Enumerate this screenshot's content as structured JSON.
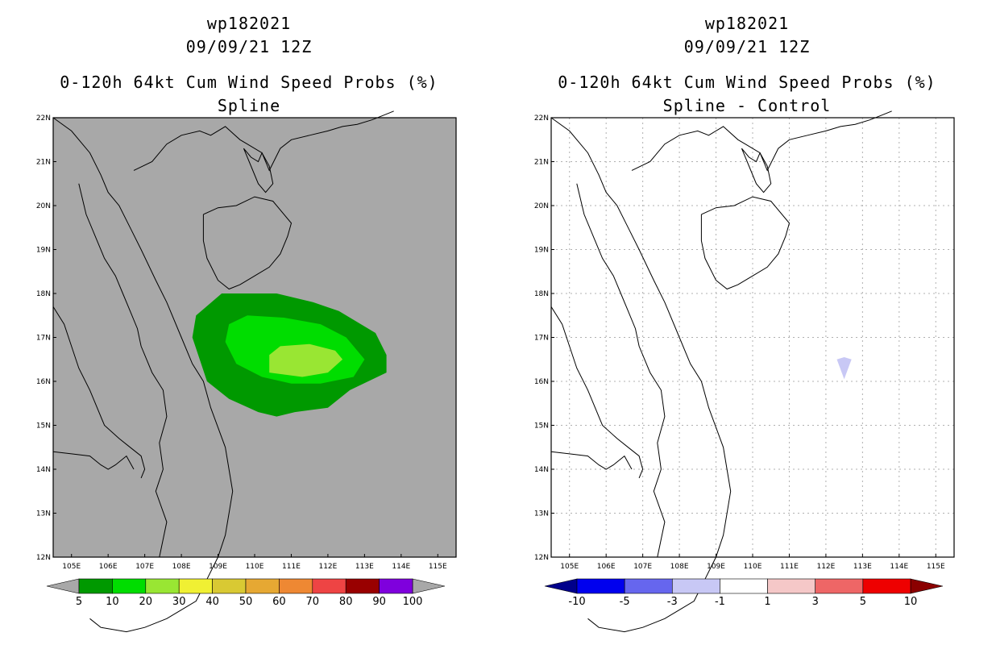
{
  "panels": [
    {
      "id": "left",
      "title": {
        "line1": "wp182021",
        "line2": "09/09/21 12Z",
        "line3": "0-120h 64kt Cum Wind Speed Probs (%)",
        "line4": "Spline"
      },
      "background": "#a8a8a8",
      "colorbar": {
        "colors": [
          "#009900",
          "#00dd00",
          "#99e633",
          "#f0f033",
          "#d9c933",
          "#e6a833",
          "#ee8833",
          "#ee4444",
          "#990000",
          "#7f00dd"
        ],
        "end_colors": [
          "#a8a8a8",
          "#a8a8a8"
        ],
        "labels": [
          "5",
          "10",
          "20",
          "30",
          "40",
          "50",
          "60",
          "70",
          "80",
          "90",
          "100"
        ]
      }
    },
    {
      "id": "right",
      "title": {
        "line1": "wp182021",
        "line2": "09/09/21 12Z",
        "line3": "0-120h 64kt Cum Wind Speed Probs (%)",
        "line4": "Spline - Control"
      },
      "background": "#ffffff",
      "colorbar": {
        "colors": [
          "#0000ee",
          "#6666ee",
          "#c8c8f5",
          "#ffffff",
          "#f5c8c8",
          "#ee6666",
          "#ee0000"
        ],
        "end_colors": [
          "#00008b",
          "#8b0000"
        ],
        "labels": [
          "-10",
          "-5",
          "-3",
          "-1",
          "1",
          "3",
          "5",
          "10"
        ]
      }
    }
  ],
  "chart_data": [
    {
      "type": "heatmap",
      "title": "0-120h 64kt Cum Wind Speed Probs (%) - Spline",
      "xlabel": "",
      "ylabel": "",
      "xlim": [
        104.5,
        115.5
      ],
      "ylim": [
        12,
        22
      ],
      "x_ticks": [
        "105E",
        "106E",
        "107E",
        "108E",
        "109E",
        "110E",
        "111E",
        "112E",
        "113E",
        "114E",
        "115E"
      ],
      "y_ticks": [
        "12N",
        "13N",
        "14N",
        "15N",
        "16N",
        "17N",
        "18N",
        "19N",
        "20N",
        "21N",
        "22N"
      ],
      "contours": [
        {
          "level": "5-10",
          "color": "#009900",
          "lon": [
            108.4,
            109.1,
            110.6,
            111.6,
            112.3,
            113.3,
            113.6,
            113.6,
            112.6,
            112.0,
            111.1,
            110.6,
            110.1,
            109.3,
            108.7,
            108.3,
            108.4
          ],
          "lat": [
            17.5,
            18.0,
            18.0,
            17.8,
            17.6,
            17.1,
            16.6,
            16.2,
            15.8,
            15.4,
            15.3,
            15.2,
            15.3,
            15.6,
            16.0,
            17.0,
            17.5
          ]
        },
        {
          "level": "10-20",
          "color": "#00dd00",
          "lon": [
            109.3,
            109.8,
            110.8,
            111.8,
            112.5,
            113.0,
            112.7,
            111.8,
            111.0,
            110.2,
            109.5,
            109.2,
            109.3
          ],
          "lat": [
            17.3,
            17.5,
            17.45,
            17.3,
            17.0,
            16.5,
            16.1,
            15.95,
            15.95,
            16.1,
            16.4,
            16.9,
            17.3
          ]
        },
        {
          "level": "20-30",
          "color": "#99e633",
          "lon": [
            110.7,
            111.5,
            112.2,
            112.4,
            112.0,
            111.3,
            110.4,
            110.4,
            110.7
          ],
          "lat": [
            16.8,
            16.85,
            16.7,
            16.5,
            16.2,
            16.1,
            16.2,
            16.6,
            16.8
          ]
        }
      ],
      "legend": {
        "labels": [
          "5",
          "10",
          "20",
          "30",
          "40",
          "50",
          "60",
          "70",
          "80",
          "90",
          "100"
        ],
        "position": "bottom"
      }
    },
    {
      "type": "heatmap",
      "title": "0-120h 64kt Cum Wind Speed Probs (%) - Spline - Control",
      "xlabel": "",
      "ylabel": "",
      "xlim": [
        104.5,
        115.5
      ],
      "ylim": [
        12,
        22
      ],
      "x_ticks": [
        "105E",
        "106E",
        "107E",
        "108E",
        "109E",
        "110E",
        "111E",
        "112E",
        "113E",
        "114E",
        "115E"
      ],
      "y_ticks": [
        "12N",
        "13N",
        "14N",
        "15N",
        "16N",
        "17N",
        "18N",
        "19N",
        "20N",
        "21N",
        "22N"
      ],
      "grid": true,
      "contours": [
        {
          "level": "-3 to -1",
          "color": "#c8c8f5",
          "lon": [
            112.3,
            112.5,
            112.7,
            112.5,
            112.3
          ],
          "lat": [
            16.5,
            16.55,
            16.5,
            16.05,
            16.5
          ]
        }
      ],
      "legend": {
        "labels": [
          "-10",
          "-5",
          "-3",
          "-1",
          "1",
          "3",
          "5",
          "10"
        ],
        "position": "bottom"
      }
    }
  ],
  "coastline": {
    "segments": [
      {
        "name": "vietnam-china-coast",
        "lon": [
          104.5,
          105.0,
          105.5,
          105.8,
          106.0,
          106.3,
          106.6,
          106.9,
          107.3,
          107.6,
          108.0,
          108.3,
          108.6,
          108.8,
          109.2,
          109.4,
          109.3,
          109.2,
          109.0,
          108.7,
          108.4,
          108.0,
          107.6,
          107.0,
          106.5,
          105.8,
          105.5
        ],
        "lat": [
          22.0,
          21.7,
          21.2,
          20.7,
          20.3,
          20.0,
          19.5,
          19.0,
          18.3,
          17.8,
          17.0,
          16.4,
          16.0,
          15.4,
          14.5,
          13.5,
          13.0,
          12.5,
          12.0,
          11.5,
          11.0,
          10.8,
          10.6,
          10.4,
          10.3,
          10.4,
          10.6
        ]
      },
      {
        "name": "gulf-north-coast",
        "lon": [
          106.7,
          107.2,
          107.6,
          108.0,
          108.5,
          108.8,
          109.2,
          109.6,
          109.8,
          110.2,
          110.4,
          110.7,
          111.0,
          111.5,
          112.0,
          112.4,
          112.8,
          113.2,
          113.5,
          113.8
        ],
        "lat": [
          20.8,
          21.0,
          21.4,
          21.6,
          21.7,
          21.6,
          21.8,
          21.5,
          21.4,
          21.2,
          20.8,
          21.3,
          21.5,
          21.6,
          21.7,
          21.8,
          21.85,
          21.95,
          22.05,
          22.15
        ]
      },
      {
        "name": "leizhou-peninsula",
        "lon": [
          109.7,
          109.9,
          110.1,
          110.3,
          110.5,
          110.4,
          110.2,
          110.1,
          109.9,
          109.7
        ],
        "lat": [
          21.3,
          20.9,
          20.5,
          20.3,
          20.5,
          20.9,
          21.2,
          21.0,
          21.1,
          21.3
        ]
      },
      {
        "name": "hainan",
        "lon": [
          108.6,
          109.0,
          109.5,
          110.0,
          110.5,
          111.0,
          110.9,
          110.7,
          110.4,
          110.0,
          109.6,
          109.3,
          109.0,
          108.7,
          108.6,
          108.6
        ],
        "lat": [
          19.8,
          19.95,
          20.0,
          20.2,
          20.1,
          19.6,
          19.3,
          18.9,
          18.6,
          18.4,
          18.2,
          18.1,
          18.3,
          18.8,
          19.2,
          19.8
        ]
      },
      {
        "name": "laos-border",
        "lon": [
          105.2,
          105.4,
          105.7,
          105.9,
          106.2,
          106.4,
          106.6,
          106.8,
          106.9,
          107.2,
          107.5,
          107.6,
          107.4,
          107.5,
          107.3,
          107.6,
          107.4
        ],
        "lat": [
          20.5,
          19.8,
          19.2,
          18.8,
          18.4,
          18.0,
          17.6,
          17.2,
          16.8,
          16.2,
          15.8,
          15.2,
          14.6,
          14.0,
          13.5,
          12.8,
          12.0
        ]
      },
      {
        "name": "thailand-border",
        "lon": [
          104.5,
          104.8,
          105.0,
          105.2,
          105.5,
          105.9,
          106.3,
          106.6,
          106.9,
          107.0,
          106.9
        ],
        "lat": [
          17.7,
          17.3,
          16.8,
          16.3,
          15.8,
          15.0,
          14.7,
          14.5,
          14.3,
          14.0,
          13.8
        ]
      },
      {
        "name": "cambodia-border",
        "lon": [
          104.5,
          105.0,
          105.5,
          105.8,
          106.0,
          106.2,
          106.5,
          106.7
        ],
        "lat": [
          14.4,
          14.35,
          14.3,
          14.1,
          14.0,
          14.1,
          14.3,
          14.0
        ]
      }
    ]
  }
}
